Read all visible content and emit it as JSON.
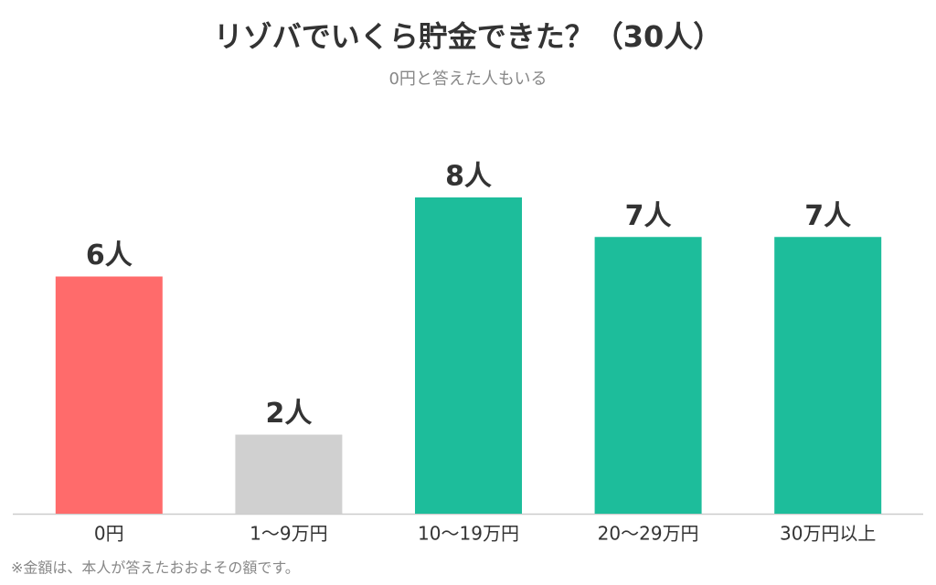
{
  "chart_data": {
    "type": "bar",
    "title": "リゾバでいくら貯金できた？（30人）",
    "subtitle": "0円と答えた人もいる",
    "categories": [
      "0円",
      "1〜9万円",
      "10〜19万円",
      "20〜29万円",
      "30万円以上"
    ],
    "values": [
      6,
      2,
      8,
      7,
      7
    ],
    "value_labels": [
      "6人",
      "2人",
      "8人",
      "7人",
      "7人"
    ],
    "colors": [
      "#ff6b6b",
      "#d0d0d0",
      "#1dbd9b",
      "#1dbd9b",
      "#1dbd9b"
    ],
    "footnote": "※金額は、本人が答えたおおよその額です。"
  }
}
